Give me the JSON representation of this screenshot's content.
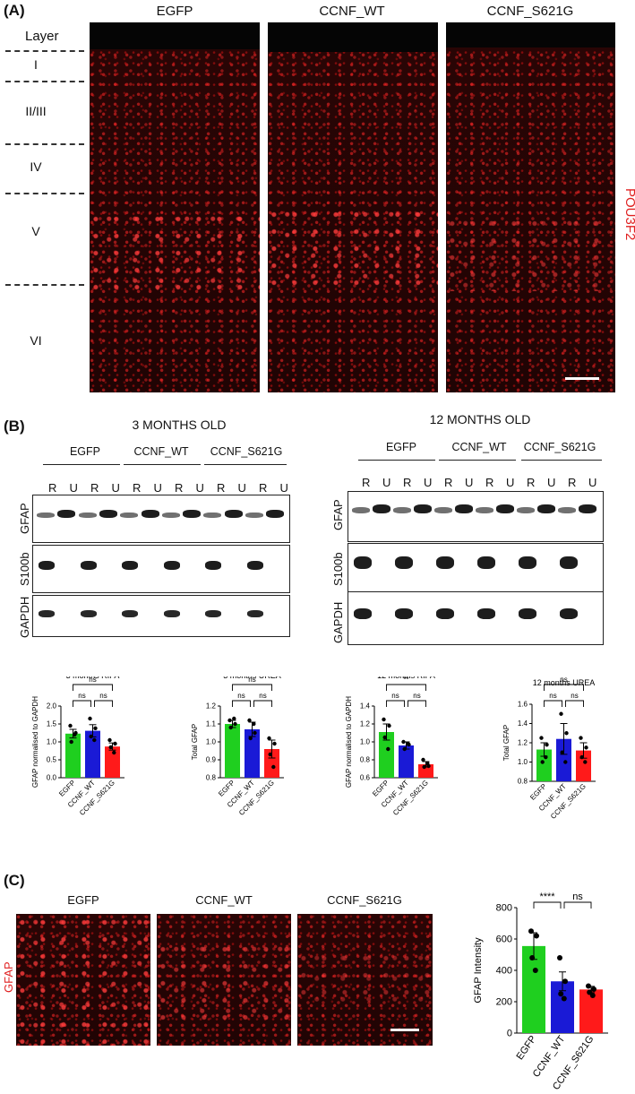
{
  "panel_a": {
    "label": "(A)",
    "columns": [
      "EGFP",
      "CCNF_WT",
      "CCNF_S621G"
    ],
    "layer_header": "Layer",
    "layers": [
      "I",
      "II/III",
      "IV",
      "V",
      "VI"
    ],
    "side_label": "POU3F2"
  },
  "panel_b": {
    "label": "(B)",
    "age_titles": [
      "3 MONTHS OLD",
      "12 MONTHS OLD"
    ],
    "groups": [
      "EGFP",
      "CCNF_WT",
      "CCNF_S621G"
    ],
    "lanes": [
      "R",
      "U",
      "R",
      "U",
      "R",
      "U",
      "R",
      "U",
      "R",
      "U",
      "R",
      "U"
    ],
    "blots": [
      "GFAP",
      "S100b",
      "GAPDH"
    ]
  },
  "panel_c": {
    "label": "(C)",
    "columns": [
      "EGFP",
      "CCNF_WT",
      "CCNF_S621G"
    ],
    "side_label": "GFAP"
  },
  "colors": {
    "EGFP": "#1fcf1f",
    "CCNF_WT": "#1a1ad6",
    "CCNF_S621G": "#ff1a1a",
    "stain": "#e02020"
  },
  "chart_data": [
    {
      "type": "bar",
      "title": "3 months RIPA",
      "ylabel": "GFAP normalised to GAPDH",
      "categories": [
        "EGFP",
        "CCNF_WT",
        "CCNF_S621G"
      ],
      "values": [
        1.23,
        1.31,
        0.87
      ],
      "errors": [
        0.12,
        0.17,
        0.1
      ],
      "points": [
        [
          1.45,
          1.25,
          1.0,
          1.2
        ],
        [
          1.65,
          1.38,
          1.15,
          1.05
        ],
        [
          1.05,
          0.95,
          0.85,
          0.7
        ]
      ],
      "ylim": [
        0,
        2.0
      ],
      "yticks": [
        "0.0",
        "0.5",
        "1.0",
        "1.5",
        "2.0"
      ],
      "comparisons": [
        {
          "a": 0,
          "b": 1,
          "label": "ns"
        },
        {
          "a": 1,
          "b": 2,
          "label": "ns"
        },
        {
          "a": 0,
          "b": 2,
          "label": "ns"
        }
      ]
    },
    {
      "type": "bar",
      "title": "3 months UREA",
      "ylabel": "Total GFAP",
      "categories": [
        "EGFP",
        "CCNF_WT",
        "CCNF_S621G"
      ],
      "values": [
        1.1,
        1.07,
        0.96
      ],
      "errors": [
        0.02,
        0.04,
        0.05
      ],
      "points": [
        [
          1.12,
          1.1,
          1.08,
          1.13
        ],
        [
          1.12,
          1.05,
          1.02,
          1.1
        ],
        [
          1.02,
          0.99,
          0.93,
          0.86
        ]
      ],
      "ylim": [
        0.8,
        1.2
      ],
      "yticks": [
        "0.8",
        "0.9",
        "1.0",
        "1.1",
        "1.2"
      ],
      "comparisons": [
        {
          "a": 0,
          "b": 1,
          "label": "ns"
        },
        {
          "a": 1,
          "b": 2,
          "label": "ns"
        },
        {
          "a": 0,
          "b": 2,
          "label": "ns"
        }
      ]
    },
    {
      "type": "bar",
      "title": "12 months RIPA",
      "ylabel": "GFAP normalised to GAPDH",
      "categories": [
        "EGFP",
        "CCNF_WT",
        "CCNF_S621G"
      ],
      "values": [
        1.11,
        0.96,
        0.75
      ],
      "errors": [
        0.09,
        0.04,
        0.03
      ],
      "points": [
        [
          1.25,
          1.18,
          1.05,
          0.92
        ],
        [
          1.0,
          0.97,
          0.92,
          0.98
        ],
        [
          0.8,
          0.73,
          0.72,
          0.76
        ]
      ],
      "ylim": [
        0.6,
        1.4
      ],
      "yticks": [
        "0.6",
        "0.8",
        "1.0",
        "1.2",
        "1.4"
      ],
      "comparisons": [
        {
          "a": 0,
          "b": 1,
          "label": "ns"
        },
        {
          "a": 1,
          "b": 2,
          "label": "ns"
        },
        {
          "a": 0,
          "b": 2,
          "label": "**"
        }
      ]
    },
    {
      "type": "bar",
      "title": "12 months UREA",
      "ylabel": "Total GFAP",
      "categories": [
        "EGFP",
        "CCNF_WT",
        "CCNF_S621G"
      ],
      "values": [
        1.13,
        1.24,
        1.12
      ],
      "errors": [
        0.07,
        0.16,
        0.08
      ],
      "points": [
        [
          1.25,
          1.18,
          1.0,
          1.05
        ],
        [
          1.5,
          1.3,
          1.1,
          1.0
        ],
        [
          1.25,
          1.15,
          1.05,
          1.0
        ]
      ],
      "ylim": [
        0.8,
        1.6
      ],
      "yticks": [
        "0.8",
        "1.0",
        "1.2",
        "1.4",
        "1.6"
      ],
      "comparisons": [
        {
          "a": 0,
          "b": 1,
          "label": "ns"
        },
        {
          "a": 1,
          "b": 2,
          "label": "ns"
        },
        {
          "a": 0,
          "b": 2,
          "label": "ns"
        }
      ]
    },
    {
      "type": "bar",
      "title": "",
      "ylabel": "GFAP Intensity",
      "categories": [
        "EGFP",
        "CCNF_WT",
        "CCNF_S621G"
      ],
      "values": [
        555,
        330,
        278
      ],
      "errors": [
        85,
        60,
        20
      ],
      "points": [
        [
          650,
          620,
          480,
          400
        ],
        [
          480,
          330,
          250,
          220
        ],
        [
          300,
          280,
          260,
          240
        ]
      ],
      "ylim": [
        0,
        800
      ],
      "yticks": [
        "0",
        "200",
        "400",
        "600",
        "800"
      ],
      "comparisons": [
        {
          "a": 0,
          "b": 1,
          "label": "****"
        },
        {
          "a": 1,
          "b": 2,
          "label": "ns"
        },
        {
          "a": 0,
          "b": 2,
          "label": "****"
        }
      ]
    }
  ]
}
